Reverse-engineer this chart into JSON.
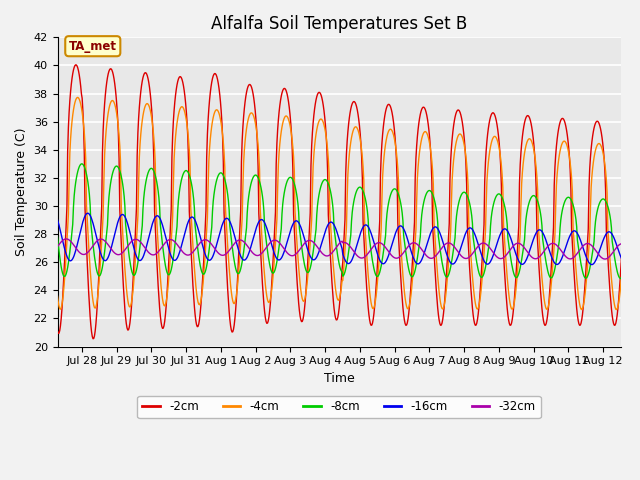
{
  "title": "Alfalfa Soil Temperatures Set B",
  "xlabel": "Time",
  "ylabel": "Soil Temperature (C)",
  "ylim": [
    20,
    42
  ],
  "xtick_labels": [
    "Jul 28",
    "Jul 29",
    "Jul 30",
    "Jul 31",
    "Aug 1",
    "Aug 2",
    "Aug 3",
    "Aug 4",
    "Aug 5",
    "Aug 6",
    "Aug 7",
    "Aug 8",
    "Aug 9",
    "Aug 10",
    "Aug 11",
    "Aug 12"
  ],
  "xtick_positions": [
    1,
    2,
    3,
    4,
    5,
    6,
    7,
    8,
    9,
    10,
    11,
    12,
    13,
    14,
    15,
    16
  ],
  "colors": {
    "-2cm": "#DD0000",
    "-4cm": "#FF8800",
    "-8cm": "#00CC00",
    "-16cm": "#0000EE",
    "-32cm": "#AA00AA"
  },
  "legend_label": "TA_met",
  "legend_box_facecolor": "#FFFFCC",
  "legend_box_edgecolor": "#CC8800",
  "plot_bg": "#E8E8E8",
  "fig_bg": "#F2F2F2",
  "grid_color": "#FFFFFF",
  "title_fontsize": 12,
  "axis_label_fontsize": 9,
  "tick_fontsize": 8
}
